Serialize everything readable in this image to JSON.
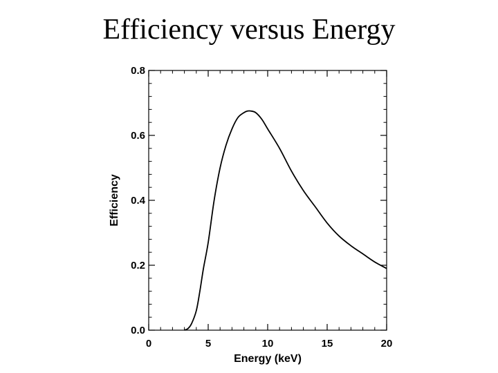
{
  "slide": {
    "title": "Efficiency versus Energy"
  },
  "chart_data": {
    "type": "line",
    "title": "Efficiency versus Energy",
    "xlabel": "Energy (keV)",
    "ylabel": "Efficiency",
    "xlim": [
      0,
      20
    ],
    "ylim": [
      0,
      0.8
    ],
    "xticks": [
      0,
      5,
      10,
      15,
      20
    ],
    "xtick_labels": [
      "0",
      "5",
      "10",
      "15",
      "20"
    ],
    "yticks": [
      0.0,
      0.2,
      0.4,
      0.6,
      0.8
    ],
    "ytick_labels": [
      "0.0",
      "0.2",
      "0.4",
      "0.6",
      "0.8"
    ],
    "x_minor_step": 1,
    "y_minor_step": 0.04,
    "grid": false,
    "series": [
      {
        "name": "Efficiency",
        "color": "#000000",
        "x": [
          3.0,
          3.3,
          3.6,
          4.0,
          4.3,
          4.6,
          5.0,
          5.5,
          6.0,
          6.5,
          7.0,
          7.5,
          8.0,
          8.3,
          8.6,
          9.0,
          9.5,
          10.0,
          11.0,
          12.0,
          13.0,
          14.0,
          15.0,
          16.0,
          17.0,
          18.0,
          19.0,
          20.0
        ],
        "y": [
          0.0,
          0.005,
          0.02,
          0.06,
          0.12,
          0.19,
          0.27,
          0.4,
          0.5,
          0.57,
          0.62,
          0.655,
          0.67,
          0.675,
          0.675,
          0.67,
          0.65,
          0.62,
          0.56,
          0.49,
          0.43,
          0.38,
          0.33,
          0.29,
          0.26,
          0.235,
          0.21,
          0.19
        ]
      }
    ]
  }
}
